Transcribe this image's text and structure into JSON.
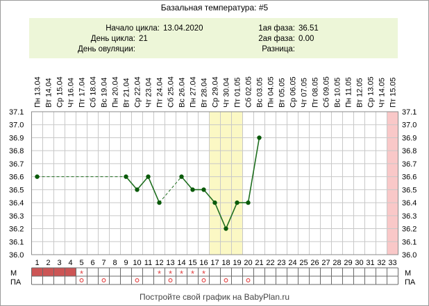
{
  "header": {
    "title": "Базальная температура: #5",
    "cycle_start_label": "Начало цикла:",
    "cycle_start_value": "13.04.2020",
    "cycle_day_label": "День цикла:",
    "cycle_day_value": "21",
    "ovulation_day_label": "День овуляции:",
    "ovulation_day_value": "",
    "phase1_label": "1ая фаза:",
    "phase1_value": "36.51",
    "phase2_label": "2ая фаза:",
    "phase2_value": "0.00",
    "difference_label": "Разница:",
    "difference_value": ""
  },
  "footer": {
    "text": "Постройте свой график на BabyPlan.ru"
  },
  "marker_rows": {
    "m_label": "М",
    "pa_label": "ПА"
  },
  "chart_data": {
    "type": "line",
    "title": "Базальная температура: #5",
    "x_labels": [
      "Пн 13.04",
      "Вт 14.04",
      "Ср 15.04",
      "Чт 16.04",
      "Пт 17.04",
      "Сб 18.04",
      "Вс 19.04",
      "Пн 20.04",
      "Вт 21.04",
      "Ср 22.04",
      "Чт 23.04",
      "Пт 24.04",
      "Сб 25.04",
      "Вс 26.04",
      "Пн 27.04",
      "Вт 28.04",
      "Ср 29.04",
      "Чт 30.04",
      "Пт 01.05",
      "Сб 02.05",
      "Вс 03.05",
      "Пн 04.05",
      "Вт 05.05",
      "Ср 06.05",
      "Чт 07.05",
      "Пт 08.05",
      "Сб 09.05",
      "Вс 10.05",
      "Пн 11.05",
      "Вт 12.05",
      "Ср 13.05",
      "Чт 14.05",
      "Пт 15.05"
    ],
    "cycle_days": [
      "1",
      "2",
      "3",
      "4",
      "5",
      "6",
      "7",
      "8",
      "9",
      "10",
      "11",
      "12",
      "13",
      "14",
      "15",
      "16",
      "17",
      "18",
      "19",
      "20",
      "21",
      "22",
      "23",
      "24",
      "25",
      "26",
      "27",
      "28",
      "29",
      "30",
      "31",
      "32",
      "33"
    ],
    "y_ticks": [
      "36.0",
      "36.1",
      "36.2",
      "36.3",
      "36.4",
      "36.5",
      "36.6",
      "36.7",
      "36.8",
      "36.9",
      "37.0",
      "37.1"
    ],
    "ylim": [
      36.0,
      37.1
    ],
    "temperatures": [
      {
        "day": 1,
        "value": 36.6
      },
      {
        "day": 9,
        "value": 36.6
      },
      {
        "day": 10,
        "value": 36.5
      },
      {
        "day": 11,
        "value": 36.6
      },
      {
        "day": 12,
        "value": 36.4
      },
      {
        "day": 14,
        "value": 36.6
      },
      {
        "day": 15,
        "value": 36.5
      },
      {
        "day": 16,
        "value": 36.5
      },
      {
        "day": 17,
        "value": 36.4
      },
      {
        "day": 18,
        "value": 36.2
      },
      {
        "day": 19,
        "value": 36.4
      },
      {
        "day": 20,
        "value": 36.4
      },
      {
        "day": 21,
        "value": 36.9
      }
    ],
    "segments": [
      {
        "from": 1,
        "to": 9,
        "style": "dashed"
      },
      {
        "from": 9,
        "to": 10,
        "style": "solid"
      },
      {
        "from": 10,
        "to": 11,
        "style": "solid"
      },
      {
        "from": 11,
        "to": 12,
        "style": "solid"
      },
      {
        "from": 12,
        "to": 14,
        "style": "dashed"
      },
      {
        "from": 14,
        "to": 15,
        "style": "solid"
      },
      {
        "from": 15,
        "to": 16,
        "style": "solid"
      },
      {
        "from": 16,
        "to": 17,
        "style": "solid"
      },
      {
        "from": 17,
        "to": 18,
        "style": "solid"
      },
      {
        "from": 18,
        "to": 19,
        "style": "solid"
      },
      {
        "from": 19,
        "to": 20,
        "style": "solid"
      },
      {
        "from": 20,
        "to": 21,
        "style": "solid"
      }
    ],
    "highlight_days": [
      17,
      18,
      19
    ],
    "current_day": 33,
    "moon_day": 19,
    "menstruation_days": [
      1,
      2,
      3,
      4
    ],
    "m_star_days": [
      5,
      12,
      13,
      14,
      15,
      16
    ],
    "pa_circle_days": [
      5,
      7,
      10,
      13,
      16,
      18,
      20
    ],
    "grid": true,
    "colors": {
      "line": "#1e6e1e",
      "point": "#0a5a0a",
      "highlight": "#fbf8c4",
      "current_day": "#f9c8c8",
      "menstruation": "#cc5555",
      "marker": "#e03c3c",
      "info_background": "#edf6d8"
    }
  }
}
